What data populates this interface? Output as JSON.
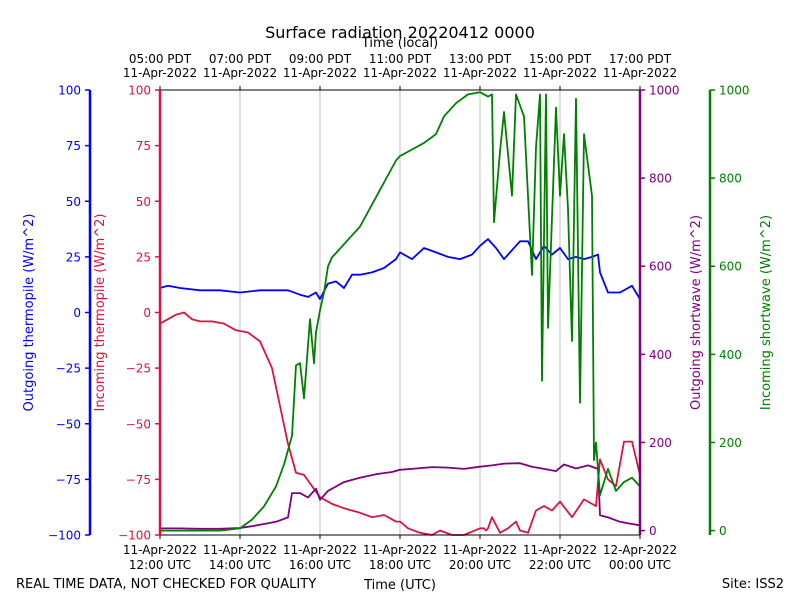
{
  "chart_data": {
    "type": "line",
    "title": "Surface radiation 20220412 0000",
    "top_axis_label": "Time (local)",
    "xlabel": "Time (UTC)",
    "footer_left": "REAL TIME DATA, NOT CHECKED FOR QUALITY",
    "footer_right": "Site: ISS2",
    "x_range_hours_utc": [
      12,
      24
    ],
    "x_ticks_utc": [
      {
        "h": 12,
        "l1": "11-Apr-2022",
        "l2": "12:00 UTC"
      },
      {
        "h": 14,
        "l1": "11-Apr-2022",
        "l2": "14:00 UTC"
      },
      {
        "h": 16,
        "l1": "11-Apr-2022",
        "l2": "16:00 UTC"
      },
      {
        "h": 18,
        "l1": "11-Apr-2022",
        "l2": "18:00 UTC"
      },
      {
        "h": 20,
        "l1": "11-Apr-2022",
        "l2": "20:00 UTC"
      },
      {
        "h": 22,
        "l1": "11-Apr-2022",
        "l2": "22:00 UTC"
      },
      {
        "h": 24,
        "l1": "12-Apr-2022",
        "l2": "00:00 UTC"
      }
    ],
    "x_ticks_local": [
      {
        "h": 12,
        "l1": "05:00 PDT",
        "l2": "11-Apr-2022"
      },
      {
        "h": 14,
        "l1": "07:00 PDT",
        "l2": "11-Apr-2022"
      },
      {
        "h": 16,
        "l1": "09:00 PDT",
        "l2": "11-Apr-2022"
      },
      {
        "h": 18,
        "l1": "11:00 PDT",
        "l2": "11-Apr-2022"
      },
      {
        "h": 20,
        "l1": "13:00 PDT",
        "l2": "11-Apr-2022"
      },
      {
        "h": 22,
        "l1": "15:00 PDT",
        "l2": "11-Apr-2022"
      },
      {
        "h": 24,
        "l1": "17:00 PDT",
        "l2": "11-Apr-2022"
      }
    ],
    "grid_x": true,
    "axes": [
      {
        "id": "out_thermo",
        "label": "Outgoing thermopile (W/m^2)",
        "color": "#0000ff",
        "ylim": [
          -100,
          100
        ],
        "ticks": [
          -100,
          -75,
          -50,
          -25,
          0,
          25,
          50,
          75,
          100
        ],
        "side": "left-outer"
      },
      {
        "id": "in_thermo",
        "label": "Incoming thermopile (W/m^2)",
        "color": "#dc143c",
        "ylim": [
          -100,
          100
        ],
        "ticks": [
          -100,
          -75,
          -50,
          -25,
          0,
          25,
          50,
          75,
          100
        ],
        "side": "left-inner"
      },
      {
        "id": "out_sw",
        "label": "Outgoing shortwave (W/m^2)",
        "color": "#800080",
        "ylim": [
          -10,
          1000
        ],
        "ticks": [
          0,
          200,
          400,
          600,
          800,
          1000
        ],
        "side": "right-inner"
      },
      {
        "id": "in_sw",
        "label": "Incoming shortwave (W/m^2)",
        "color": "#008000",
        "ylim": [
          -10,
          1000
        ],
        "ticks": [
          0,
          200,
          400,
          600,
          800,
          1000
        ],
        "side": "right-outer"
      }
    ],
    "series": [
      {
        "name": "Outgoing thermopile (W/m^2)",
        "axis": "out_thermo",
        "color": "#0000ff",
        "x": [
          12.0,
          12.2,
          12.5,
          13.0,
          13.5,
          14.0,
          14.5,
          15.0,
          15.2,
          15.5,
          15.7,
          15.9,
          16.0,
          16.2,
          16.4,
          16.6,
          16.8,
          17.0,
          17.3,
          17.6,
          17.9,
          18.0,
          18.3,
          18.6,
          18.9,
          19.2,
          19.5,
          19.8,
          20.0,
          20.2,
          20.4,
          20.6,
          20.8,
          21.0,
          21.2,
          21.4,
          21.6,
          21.8,
          22.0,
          22.2,
          22.4,
          22.6,
          22.8,
          22.95,
          23.0,
          23.2,
          23.5,
          23.8,
          24.0
        ],
        "values": [
          11,
          12,
          11,
          10,
          10,
          9,
          10,
          10,
          10,
          8,
          7,
          9,
          6,
          13,
          14,
          11,
          17,
          17,
          18,
          20,
          24,
          27,
          24,
          29,
          27,
          25,
          24,
          26,
          30,
          33,
          29,
          24,
          28,
          32,
          32,
          24,
          30,
          26,
          29,
          24,
          25,
          24,
          25,
          26,
          18,
          9,
          9,
          12,
          6
        ]
      },
      {
        "name": "Incoming thermopile (W/m^2)",
        "axis": "in_thermo",
        "color": "#dc143c",
        "x": [
          12.0,
          12.2,
          12.4,
          12.6,
          12.8,
          13.0,
          13.3,
          13.6,
          13.9,
          14.2,
          14.5,
          14.8,
          15.0,
          15.2,
          15.4,
          15.6,
          15.8,
          16.0,
          16.3,
          16.6,
          17.0,
          17.3,
          17.6,
          17.9,
          18.0,
          18.2,
          18.5,
          18.8,
          19.0,
          19.3,
          19.6,
          20.0,
          20.1,
          20.15,
          20.2,
          20.3,
          20.5,
          20.7,
          20.9,
          21.0,
          21.2,
          21.4,
          21.6,
          21.8,
          22.0,
          22.3,
          22.6,
          22.9,
          23.0,
          23.2,
          23.4,
          23.6,
          23.8,
          24.0
        ],
        "values": [
          -5,
          -3,
          -1,
          0,
          -3,
          -4,
          -4,
          -5,
          -8,
          -9,
          -13,
          -25,
          -42,
          -59,
          -72,
          -73,
          -78,
          -83,
          -86,
          -88,
          -90,
          -92,
          -91,
          -94,
          -94,
          -97,
          -99,
          -100,
          -98,
          -100,
          -100,
          -97,
          -97,
          -98,
          -97,
          -92,
          -99,
          -97,
          -94,
          -98,
          -99,
          -89,
          -87,
          -89,
          -85,
          -92,
          -84,
          -87,
          -66,
          -75,
          -78,
          -58,
          -58,
          -73
        ]
      },
      {
        "name": "Outgoing shortwave (W/m^2)",
        "axis": "out_sw",
        "color": "#800080",
        "x": [
          12.0,
          12.5,
          13.0,
          13.5,
          14.0,
          14.3,
          14.6,
          14.9,
          15.2,
          15.3,
          15.5,
          15.7,
          15.9,
          16.0,
          16.2,
          16.4,
          16.6,
          16.8,
          17.0,
          17.4,
          17.8,
          18.0,
          18.4,
          18.8,
          19.2,
          19.6,
          20.0,
          20.3,
          20.6,
          21.0,
          21.3,
          21.6,
          21.9,
          22.1,
          22.4,
          22.7,
          22.95,
          23.0,
          23.2,
          23.5,
          23.8,
          24.0
        ],
        "values": [
          5,
          5,
          4,
          4,
          6,
          10,
          15,
          20,
          30,
          85,
          85,
          75,
          95,
          70,
          90,
          100,
          110,
          115,
          120,
          128,
          133,
          138,
          141,
          144,
          143,
          140,
          145,
          148,
          152,
          153,
          145,
          140,
          135,
          150,
          141,
          148,
          140,
          35,
          30,
          20,
          15,
          12
        ]
      },
      {
        "name": "Incoming shortwave (W/m^2)",
        "axis": "in_sw",
        "color": "#008000",
        "x": [
          12.0,
          13.0,
          13.5,
          14.0,
          14.3,
          14.6,
          14.9,
          15.1,
          15.3,
          15.4,
          15.5,
          15.6,
          15.75,
          15.85,
          15.9,
          16.0,
          16.1,
          16.2,
          16.3,
          16.5,
          16.7,
          17.0,
          17.3,
          17.6,
          17.9,
          18.0,
          18.3,
          18.6,
          18.9,
          19.1,
          19.4,
          19.7,
          20.0,
          20.2,
          20.3,
          20.35,
          20.5,
          20.6,
          20.8,
          20.9,
          21.1,
          21.3,
          21.4,
          21.5,
          21.55,
          21.65,
          21.7,
          21.9,
          22.0,
          22.1,
          22.2,
          22.3,
          22.4,
          22.5,
          22.6,
          22.8,
          22.85,
          22.9,
          23.0,
          23.2,
          23.4,
          23.6,
          23.8,
          24.0
        ],
        "values": [
          0,
          0,
          0,
          5,
          25,
          55,
          100,
          150,
          215,
          375,
          380,
          300,
          480,
          380,
          450,
          500,
          540,
          600,
          620,
          640,
          660,
          690,
          740,
          790,
          840,
          850,
          865,
          880,
          900,
          940,
          970,
          990,
          995,
          985,
          990,
          700,
          860,
          950,
          760,
          990,
          940,
          580,
          870,
          990,
          340,
          990,
          460,
          960,
          760,
          900,
          730,
          430,
          980,
          290,
          900,
          760,
          160,
          200,
          80,
          140,
          90,
          110,
          120,
          100
        ]
      }
    ]
  }
}
